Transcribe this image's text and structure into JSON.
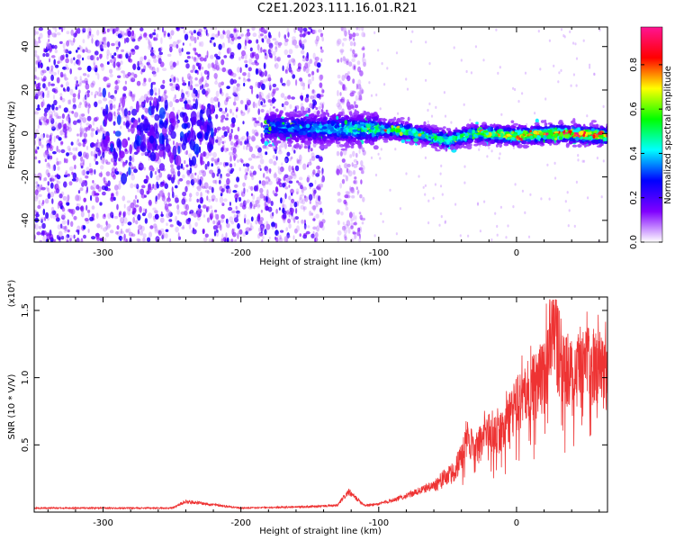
{
  "page": {
    "title": "C2E1.2023.111.16.01.R21"
  },
  "chart_data": [
    {
      "type": "heatmap",
      "xlabel": "Height of straight line (km)",
      "ylabel": "Frequency (Hz)",
      "xlim": [
        -350,
        66
      ],
      "ylim": [
        -50,
        49
      ],
      "x_ticks": [
        -300,
        -200,
        -100,
        0
      ],
      "x_tick_labels": [
        "-300",
        "-200",
        "-100",
        "0"
      ],
      "y_ticks": [
        -40,
        -20,
        0,
        20,
        40
      ],
      "y_tick_labels": [
        "-40",
        "-20",
        "0",
        "20",
        "40"
      ],
      "grid": false,
      "colorbar": {
        "label": "Normalized spectral amplitude",
        "range": [
          0,
          0.97
        ],
        "ticks": [
          0.0,
          0.2,
          0.4,
          0.6,
          0.8
        ],
        "tick_labels": [
          "0.0",
          "0.2",
          "0.4",
          "0.6",
          "0.8"
        ],
        "colormap": [
          "#ffffff",
          "#8000ff",
          "#0000ff",
          "#00ffff",
          "#00ff00",
          "#ffff00",
          "#ff0000",
          "#ff1493"
        ]
      },
      "series": [
        {
          "values": {
            "broadband_noise_height_ranges_km": [
              [
                -350,
                -140
              ],
              [
                -130,
                -110
              ]
            ],
            "ridge_center_frequency_hz": [
              [
                -180,
                3
              ],
              [
                -140,
                2
              ],
              [
                -100,
                2
              ],
              [
                -80,
                1
              ],
              [
                -50,
                -3
              ],
              [
                -30,
                0
              ],
              [
                0,
                -1
              ],
              [
                30,
                0
              ],
              [
                66,
                -1
              ]
            ],
            "ridge_peak_amplitude": [
              [
                -180,
                0.3
              ],
              [
                -140,
                0.35
              ],
              [
                -100,
                0.5
              ],
              [
                -60,
                0.5
              ],
              [
                -30,
                0.55
              ],
              [
                0,
                0.8
              ],
              [
                30,
                0.9
              ],
              [
                60,
                0.95
              ]
            ]
          }
        }
      ]
    },
    {
      "type": "line",
      "xlabel": "Height of straight line (km)",
      "ylabel": "SNR (10 * V/V)",
      "y_scale_label": "(x10⁴)",
      "xlim": [
        -350,
        66
      ],
      "ylim": [
        0,
        1.6
      ],
      "x_ticks": [
        -300,
        -200,
        -100,
        0
      ],
      "x_tick_labels": [
        "-300",
        "-200",
        "-100",
        "0"
      ],
      "y_ticks": [
        0.5,
        1.0,
        1.5
      ],
      "y_tick_labels": [
        "0.5",
        "1.0",
        "1.5"
      ],
      "grid": false,
      "line_color": "#ee3333",
      "series": [
        {
          "x": [
            -350,
            -300,
            -250,
            -240,
            -200,
            -150,
            -130,
            -122,
            -110,
            -100,
            -80,
            -60,
            -45,
            -35,
            -30,
            -20,
            -10,
            0,
            10,
            20,
            25,
            30,
            40,
            50,
            60,
            66
          ],
          "values": [
            0.03,
            0.03,
            0.03,
            0.08,
            0.03,
            0.04,
            0.05,
            0.15,
            0.05,
            0.06,
            0.12,
            0.2,
            0.3,
            0.55,
            0.45,
            0.6,
            0.6,
            0.8,
            0.9,
            1.0,
            1.4,
            1.2,
            1.0,
            1.1,
            1.05,
            1.0
          ],
          "value_unit_scale": 10000
        }
      ]
    }
  ]
}
